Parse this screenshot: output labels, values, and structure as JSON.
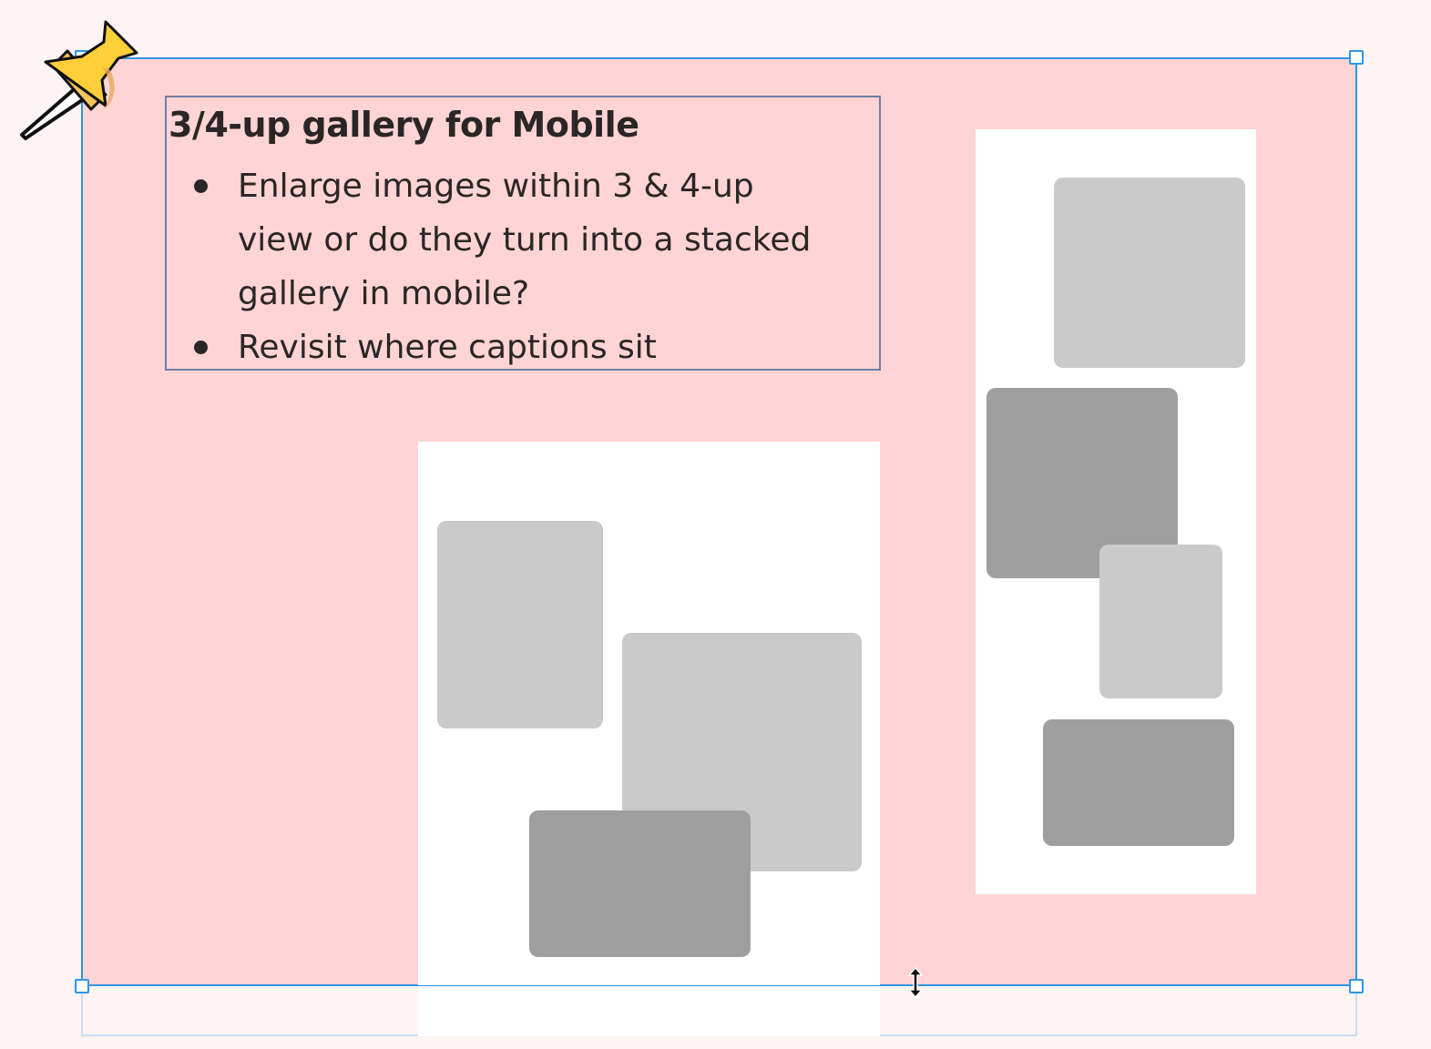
{
  "note": {
    "title": "3/4-up gallery for Mobile",
    "bullets": [
      "Enlarge images within 3 & 4-up view or do they turn into a stacked gallery in mobile?",
      "Revisit where captions sit"
    ]
  },
  "colors": {
    "frame_fill": "#ffd4d4",
    "selection": "#2f96e4",
    "note_border": "#6f7fa7",
    "placeholder_light": "#cacaca",
    "placeholder_dark": "#9e9f9e",
    "background": "#fdf4f3"
  },
  "icons": {
    "pin": "pushpin-icon",
    "cursor": "resize-vertical-cursor-icon"
  }
}
